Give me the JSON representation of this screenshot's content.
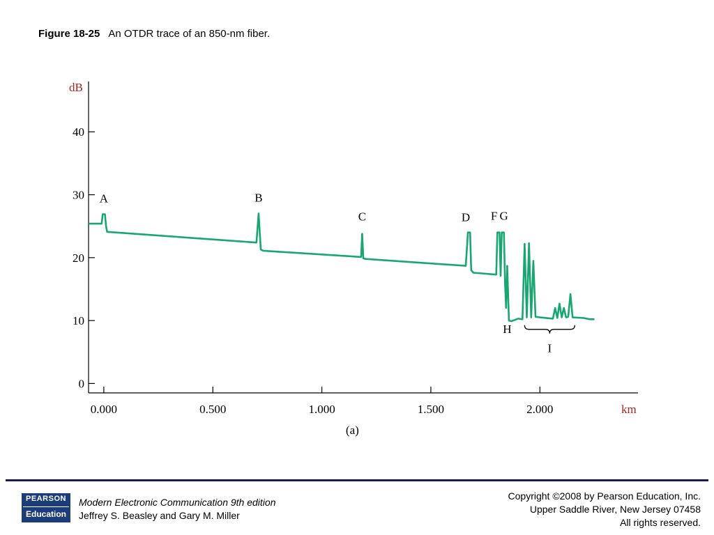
{
  "caption": {
    "figure_number": "Figure 18-25",
    "text": "An OTDR trace of an 850-nm fiber."
  },
  "chart_data": {
    "type": "line",
    "x_unit": "km",
    "y_unit": "dB",
    "sublabel": "(a)",
    "xlim": [
      -0.07,
      2.45
    ],
    "ylim": [
      -1.5,
      48
    ],
    "x_ticks": [
      {
        "value": 0,
        "label": "0.000"
      },
      {
        "value": 0.5,
        "label": "0.500"
      },
      {
        "value": 1.0,
        "label": "1.000"
      },
      {
        "value": 1.5,
        "label": "1.500"
      },
      {
        "value": 2.0,
        "label": "2.000"
      }
    ],
    "y_ticks": [
      {
        "value": 0,
        "label": "0"
      },
      {
        "value": 10,
        "label": "10"
      },
      {
        "value": 20,
        "label": "20"
      },
      {
        "value": 30,
        "label": "30"
      },
      {
        "value": 40,
        "label": "40"
      }
    ],
    "series": [
      {
        "color": "#1aa673",
        "points": [
          [
            -0.07,
            25.4
          ],
          [
            -0.01,
            25.4
          ],
          [
            -0.005,
            26.9
          ],
          [
            0.005,
            26.9
          ],
          [
            0.01,
            25.1
          ],
          [
            0.015,
            24.1
          ],
          [
            0.7,
            22.4
          ],
          [
            0.71,
            27.0
          ],
          [
            0.72,
            21.3
          ],
          [
            0.73,
            21.1
          ],
          [
            1.18,
            20.1
          ],
          [
            1.185,
            23.8
          ],
          [
            1.19,
            19.9
          ],
          [
            1.2,
            19.8
          ],
          [
            1.66,
            18.7
          ],
          [
            1.67,
            24.0
          ],
          [
            1.68,
            24.0
          ],
          [
            1.685,
            18.0
          ],
          [
            1.695,
            17.6
          ],
          [
            1.8,
            17.3
          ],
          [
            1.805,
            24.0
          ],
          [
            1.815,
            24.0
          ],
          [
            1.82,
            17.1
          ],
          [
            1.825,
            24.0
          ],
          [
            1.835,
            24.0
          ],
          [
            1.84,
            16.0
          ],
          [
            1.845,
            12.0
          ],
          [
            1.85,
            18.7
          ],
          [
            1.858,
            10.0
          ],
          [
            1.87,
            9.9
          ],
          [
            1.9,
            10.3
          ],
          [
            1.92,
            10.2
          ],
          [
            1.93,
            22.2
          ],
          [
            1.94,
            10.5
          ],
          [
            1.95,
            22.3
          ],
          [
            1.96,
            10.5
          ],
          [
            1.97,
            19.5
          ],
          [
            1.98,
            10.6
          ],
          [
            2.0,
            10.5
          ],
          [
            2.06,
            10.3
          ],
          [
            2.07,
            12.0
          ],
          [
            2.08,
            10.4
          ],
          [
            2.09,
            12.7
          ],
          [
            2.1,
            10.5
          ],
          [
            2.11,
            12.0
          ],
          [
            2.12,
            10.5
          ],
          [
            2.13,
            10.6
          ],
          [
            2.14,
            14.2
          ],
          [
            2.15,
            10.5
          ],
          [
            2.2,
            10.4
          ],
          [
            2.23,
            10.2
          ],
          [
            2.25,
            10.2
          ]
        ]
      }
    ],
    "point_labels": [
      {
        "text": "A",
        "x": 0.0,
        "y": 28.8
      },
      {
        "text": "B",
        "x": 0.71,
        "y": 28.9
      },
      {
        "text": "C",
        "x": 1.185,
        "y": 25.9
      },
      {
        "text": "D",
        "x": 1.66,
        "y": 25.8
      },
      {
        "text": "F",
        "x": 1.79,
        "y": 26.0
      },
      {
        "text": "G",
        "x": 1.835,
        "y": 26.0
      },
      {
        "text": "H",
        "x": 1.85,
        "y": 8.0
      },
      {
        "text": "I",
        "x": 2.045,
        "y": 5.0
      }
    ],
    "brace_range": [
      1.93,
      2.16
    ]
  },
  "footer": {
    "logo_top": "PEARSON",
    "logo_bottom": "Education",
    "book_title": "Modern Electronic Communication 9th edition",
    "authors": "Jeffrey S. Beasley and Gary M. Miller",
    "copyright_lines": [
      "Copyright ©2008 by Pearson Education, Inc.",
      "Upper Saddle River, New Jersey 07458",
      "All rights reserved."
    ]
  }
}
